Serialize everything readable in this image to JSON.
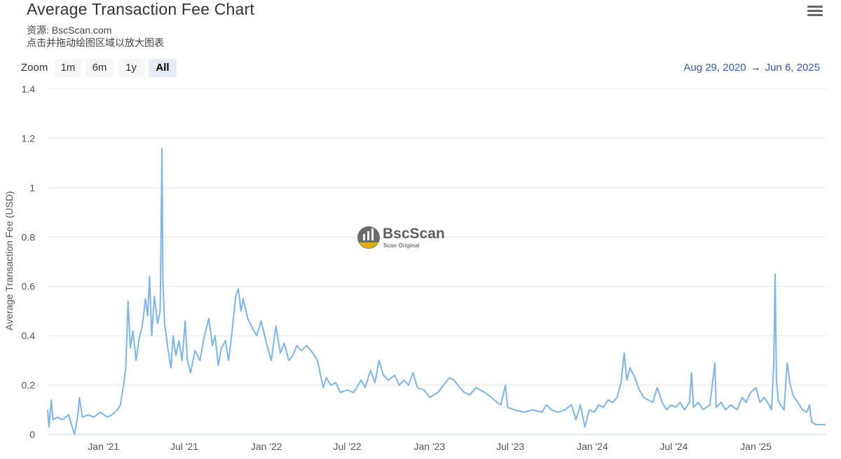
{
  "header": {
    "title": "Average Transaction Fee Chart",
    "source": "资源: BscScan.com",
    "hint": "点击并拖动绘图区域以放大图表",
    "menu_icon": "hamburger-menu-icon"
  },
  "zoom": {
    "label": "Zoom",
    "buttons": [
      {
        "label": "1m",
        "active": false
      },
      {
        "label": "6m",
        "active": false
      },
      {
        "label": "1y",
        "active": false
      },
      {
        "label": "All",
        "active": true
      }
    ]
  },
  "range": {
    "from": "Aug 29, 2020",
    "arrow": "→",
    "to": "Jun 6, 2025"
  },
  "watermark": {
    "name": "BscScan",
    "tagline": "Scan Original"
  },
  "colors": {
    "line": "#7cb5ec",
    "grid": "#e6e6e6",
    "range_text": "#335cad"
  },
  "chart_data": {
    "type": "line",
    "title": "Average Transaction Fee Chart",
    "xlabel": "",
    "ylabel": "Average Transaction Fee (USD)",
    "ylim": [
      0,
      1.4
    ],
    "yticks": [
      "0",
      "0.2",
      "0.4",
      "0.6",
      "0.8",
      "1",
      "1.2",
      "1.4"
    ],
    "xlim": [
      "2020-08-29",
      "2025-06-06"
    ],
    "xticks": [
      {
        "date": "2021-01-01",
        "label": "Jan '21"
      },
      {
        "date": "2021-07-01",
        "label": "Jul '21"
      },
      {
        "date": "2022-01-01",
        "label": "Jan '22"
      },
      {
        "date": "2022-07-01",
        "label": "Jul '22"
      },
      {
        "date": "2023-01-01",
        "label": "Jan '23"
      },
      {
        "date": "2023-07-01",
        "label": "Jul '23"
      },
      {
        "date": "2024-01-01",
        "label": "Jan '24"
      },
      {
        "date": "2024-07-01",
        "label": "Jul '24"
      },
      {
        "date": "2025-01-01",
        "label": "Jan '25"
      }
    ],
    "grid": true,
    "legend": "none",
    "series": [
      {
        "points": [
          [
            "2020-08-29",
            0.1
          ],
          [
            "2020-09-01",
            0.03
          ],
          [
            "2020-09-06",
            0.14
          ],
          [
            "2020-09-10",
            0.06
          ],
          [
            "2020-09-20",
            0.07
          ],
          [
            "2020-10-01",
            0.06
          ],
          [
            "2020-10-15",
            0.08
          ],
          [
            "2020-10-28",
            0.0
          ],
          [
            "2020-11-05",
            0.08
          ],
          [
            "2020-11-08",
            0.15
          ],
          [
            "2020-11-15",
            0.07
          ],
          [
            "2020-11-28",
            0.08
          ],
          [
            "2020-12-10",
            0.07
          ],
          [
            "2020-12-25",
            0.09
          ],
          [
            "2021-01-10",
            0.07
          ],
          [
            "2021-01-20",
            0.08
          ],
          [
            "2021-02-01",
            0.1
          ],
          [
            "2021-02-08",
            0.12
          ],
          [
            "2021-02-15",
            0.2
          ],
          [
            "2021-02-20",
            0.27
          ],
          [
            "2021-02-25",
            0.54
          ],
          [
            "2021-03-02",
            0.35
          ],
          [
            "2021-03-08",
            0.42
          ],
          [
            "2021-03-15",
            0.3
          ],
          [
            "2021-03-22",
            0.39
          ],
          [
            "2021-03-29",
            0.44
          ],
          [
            "2021-04-05",
            0.55
          ],
          [
            "2021-04-10",
            0.48
          ],
          [
            "2021-04-14",
            0.64
          ],
          [
            "2021-04-19",
            0.4
          ],
          [
            "2021-04-25",
            0.56
          ],
          [
            "2021-05-02",
            0.45
          ],
          [
            "2021-05-08",
            0.5
          ],
          [
            "2021-05-12",
            1.16
          ],
          [
            "2021-05-14",
            0.62
          ],
          [
            "2021-05-18",
            0.45
          ],
          [
            "2021-05-25",
            0.35
          ],
          [
            "2021-06-01",
            0.27
          ],
          [
            "2021-06-06",
            0.4
          ],
          [
            "2021-06-12",
            0.32
          ],
          [
            "2021-06-19",
            0.38
          ],
          [
            "2021-06-26",
            0.3
          ],
          [
            "2021-07-03",
            0.46
          ],
          [
            "2021-07-08",
            0.3
          ],
          [
            "2021-07-15",
            0.25
          ],
          [
            "2021-07-25",
            0.34
          ],
          [
            "2021-08-05",
            0.3
          ],
          [
            "2021-08-15",
            0.4
          ],
          [
            "2021-08-25",
            0.47
          ],
          [
            "2021-09-02",
            0.36
          ],
          [
            "2021-09-08",
            0.4
          ],
          [
            "2021-09-15",
            0.28
          ],
          [
            "2021-09-22",
            0.35
          ],
          [
            "2021-10-01",
            0.38
          ],
          [
            "2021-10-08",
            0.3
          ],
          [
            "2021-10-15",
            0.4
          ],
          [
            "2021-10-24",
            0.56
          ],
          [
            "2021-10-30",
            0.59
          ],
          [
            "2021-11-05",
            0.5
          ],
          [
            "2021-11-10",
            0.55
          ],
          [
            "2021-11-20",
            0.47
          ],
          [
            "2021-12-01",
            0.43
          ],
          [
            "2021-12-10",
            0.4
          ],
          [
            "2021-12-20",
            0.46
          ],
          [
            "2022-01-01",
            0.37
          ],
          [
            "2022-01-12",
            0.3
          ],
          [
            "2022-01-22",
            0.44
          ],
          [
            "2022-02-01",
            0.33
          ],
          [
            "2022-02-10",
            0.37
          ],
          [
            "2022-02-20",
            0.3
          ],
          [
            "2022-03-01",
            0.32
          ],
          [
            "2022-03-10",
            0.36
          ],
          [
            "2022-03-20",
            0.34
          ],
          [
            "2022-04-01",
            0.36
          ],
          [
            "2022-04-15",
            0.33
          ],
          [
            "2022-04-25",
            0.3
          ],
          [
            "2022-05-01",
            0.25
          ],
          [
            "2022-05-08",
            0.19
          ],
          [
            "2022-05-15",
            0.23
          ],
          [
            "2022-05-25",
            0.2
          ],
          [
            "2022-06-05",
            0.21
          ],
          [
            "2022-06-15",
            0.17
          ],
          [
            "2022-07-01",
            0.18
          ],
          [
            "2022-07-15",
            0.17
          ],
          [
            "2022-08-01",
            0.22
          ],
          [
            "2022-08-10",
            0.19
          ],
          [
            "2022-08-22",
            0.26
          ],
          [
            "2022-09-01",
            0.21
          ],
          [
            "2022-09-10",
            0.3
          ],
          [
            "2022-09-20",
            0.24
          ],
          [
            "2022-10-01",
            0.22
          ],
          [
            "2022-10-15",
            0.24
          ],
          [
            "2022-10-25",
            0.2
          ],
          [
            "2022-11-05",
            0.22
          ],
          [
            "2022-11-15",
            0.2
          ],
          [
            "2022-11-25",
            0.25
          ],
          [
            "2022-12-05",
            0.19
          ],
          [
            "2022-12-20",
            0.18
          ],
          [
            "2023-01-01",
            0.15
          ],
          [
            "2023-01-20",
            0.17
          ],
          [
            "2023-02-01",
            0.2
          ],
          [
            "2023-02-15",
            0.23
          ],
          [
            "2023-02-25",
            0.22
          ],
          [
            "2023-03-10",
            0.19
          ],
          [
            "2023-03-20",
            0.17
          ],
          [
            "2023-04-01",
            0.16
          ],
          [
            "2023-04-15",
            0.19
          ],
          [
            "2023-04-25",
            0.18
          ],
          [
            "2023-05-05",
            0.17
          ],
          [
            "2023-05-20",
            0.15
          ],
          [
            "2023-06-01",
            0.13
          ],
          [
            "2023-06-10",
            0.12
          ],
          [
            "2023-06-20",
            0.2
          ],
          [
            "2023-06-25",
            0.11
          ],
          [
            "2023-07-10",
            0.1
          ],
          [
            "2023-08-01",
            0.09
          ],
          [
            "2023-08-20",
            0.1
          ],
          [
            "2023-09-10",
            0.09
          ],
          [
            "2023-09-20",
            0.12
          ],
          [
            "2023-10-01",
            0.1
          ],
          [
            "2023-10-15",
            0.09
          ],
          [
            "2023-11-01",
            0.1
          ],
          [
            "2023-11-15",
            0.12
          ],
          [
            "2023-11-25",
            0.06
          ],
          [
            "2023-12-05",
            0.12
          ],
          [
            "2023-12-15",
            0.03
          ],
          [
            "2023-12-25",
            0.1
          ],
          [
            "2024-01-05",
            0.09
          ],
          [
            "2024-01-15",
            0.12
          ],
          [
            "2024-01-25",
            0.11
          ],
          [
            "2024-02-05",
            0.14
          ],
          [
            "2024-02-15",
            0.13
          ],
          [
            "2024-02-25",
            0.15
          ],
          [
            "2024-03-05",
            0.21
          ],
          [
            "2024-03-12",
            0.33
          ],
          [
            "2024-03-18",
            0.22
          ],
          [
            "2024-03-25",
            0.27
          ],
          [
            "2024-04-05",
            0.23
          ],
          [
            "2024-04-15",
            0.18
          ],
          [
            "2024-04-25",
            0.15
          ],
          [
            "2024-05-05",
            0.14
          ],
          [
            "2024-05-15",
            0.13
          ],
          [
            "2024-05-25",
            0.19
          ],
          [
            "2024-06-05",
            0.13
          ],
          [
            "2024-06-15",
            0.1
          ],
          [
            "2024-06-25",
            0.12
          ],
          [
            "2024-07-05",
            0.11
          ],
          [
            "2024-07-15",
            0.13
          ],
          [
            "2024-07-25",
            0.1
          ],
          [
            "2024-08-05",
            0.13
          ],
          [
            "2024-08-10",
            0.25
          ],
          [
            "2024-08-14",
            0.11
          ],
          [
            "2024-08-25",
            0.13
          ],
          [
            "2024-09-05",
            0.1
          ],
          [
            "2024-09-20",
            0.12
          ],
          [
            "2024-10-01",
            0.29
          ],
          [
            "2024-10-04",
            0.11
          ],
          [
            "2024-10-15",
            0.13
          ],
          [
            "2024-10-25",
            0.1
          ],
          [
            "2024-11-05",
            0.12
          ],
          [
            "2024-11-20",
            0.1
          ],
          [
            "2024-12-01",
            0.15
          ],
          [
            "2024-12-10",
            0.13
          ],
          [
            "2024-12-20",
            0.17
          ],
          [
            "2025-01-01",
            0.19
          ],
          [
            "2025-01-10",
            0.13
          ],
          [
            "2025-01-20",
            0.15
          ],
          [
            "2025-01-30",
            0.12
          ],
          [
            "2025-02-05",
            0.1
          ],
          [
            "2025-02-10",
            0.29
          ],
          [
            "2025-02-13",
            0.65
          ],
          [
            "2025-02-16",
            0.22
          ],
          [
            "2025-02-20",
            0.14
          ],
          [
            "2025-02-25",
            0.12
          ],
          [
            "2025-03-05",
            0.1
          ],
          [
            "2025-03-12",
            0.29
          ],
          [
            "2025-03-18",
            0.21
          ],
          [
            "2025-03-25",
            0.16
          ],
          [
            "2025-04-05",
            0.13
          ],
          [
            "2025-04-15",
            0.1
          ],
          [
            "2025-04-25",
            0.09
          ],
          [
            "2025-05-01",
            0.12
          ],
          [
            "2025-05-06",
            0.05
          ],
          [
            "2025-05-15",
            0.04
          ],
          [
            "2025-05-25",
            0.04
          ],
          [
            "2025-06-06",
            0.04
          ]
        ]
      }
    ]
  }
}
